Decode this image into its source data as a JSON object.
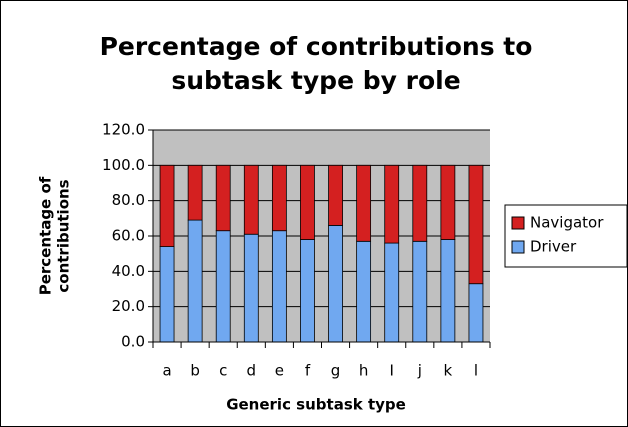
{
  "chart_data": {
    "type": "stacked_bar",
    "title": [
      "Percentage of contributions to",
      "subtask type by role"
    ],
    "x_label": "Generic subtask type",
    "y_label": [
      "Percentage of",
      "contributions"
    ],
    "categories": [
      "a",
      "b",
      "c",
      "d",
      "e",
      "f",
      "g",
      "h",
      "I",
      "j",
      "k",
      "l"
    ],
    "series": [
      {
        "name": "Driver",
        "color": "#70a8f0",
        "values": [
          54,
          69,
          63,
          61,
          63,
          58,
          66,
          57,
          56,
          57,
          58,
          33
        ]
      },
      {
        "name": "Navigator",
        "color": "#d42020",
        "values": [
          46,
          31,
          37,
          39,
          37,
          42,
          34,
          43,
          44,
          43,
          42,
          67
        ]
      }
    ],
    "ylim": [
      0,
      120
    ],
    "yticks": [
      {
        "value": 0,
        "label": "0.0"
      },
      {
        "value": 20,
        "label": "20.0"
      },
      {
        "value": 40,
        "label": "40.0"
      },
      {
        "value": 60,
        "label": "60.0"
      },
      {
        "value": 80,
        "label": "80.0"
      },
      {
        "value": 100,
        "label": "100.0"
      },
      {
        "value": 120,
        "label": "120.0"
      }
    ],
    "grid": true,
    "legend": "right",
    "plot_background": "#c0c0c0"
  }
}
